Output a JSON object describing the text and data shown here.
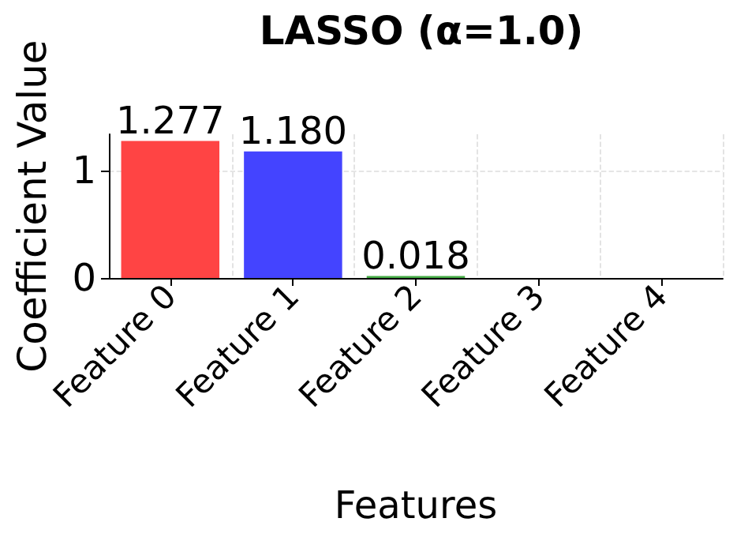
{
  "chart_data": {
    "type": "bar",
    "title": "LASSO (α=1.0)",
    "xlabel": "Features",
    "ylabel": "Coefficient Value",
    "categories": [
      "Feature 0",
      "Feature 1",
      "Feature 2",
      "Feature 3",
      "Feature 4"
    ],
    "values": [
      1.277,
      1.18,
      0.018,
      0,
      0
    ],
    "colors": [
      "#ff4444",
      "#4444ff",
      "#44aa44",
      null,
      null
    ],
    "value_labels": [
      "1.277",
      "1.180",
      "0.018",
      null,
      null
    ],
    "ylim": [
      0,
      1.34
    ],
    "yticks": [
      0,
      1
    ],
    "grid": true
  }
}
